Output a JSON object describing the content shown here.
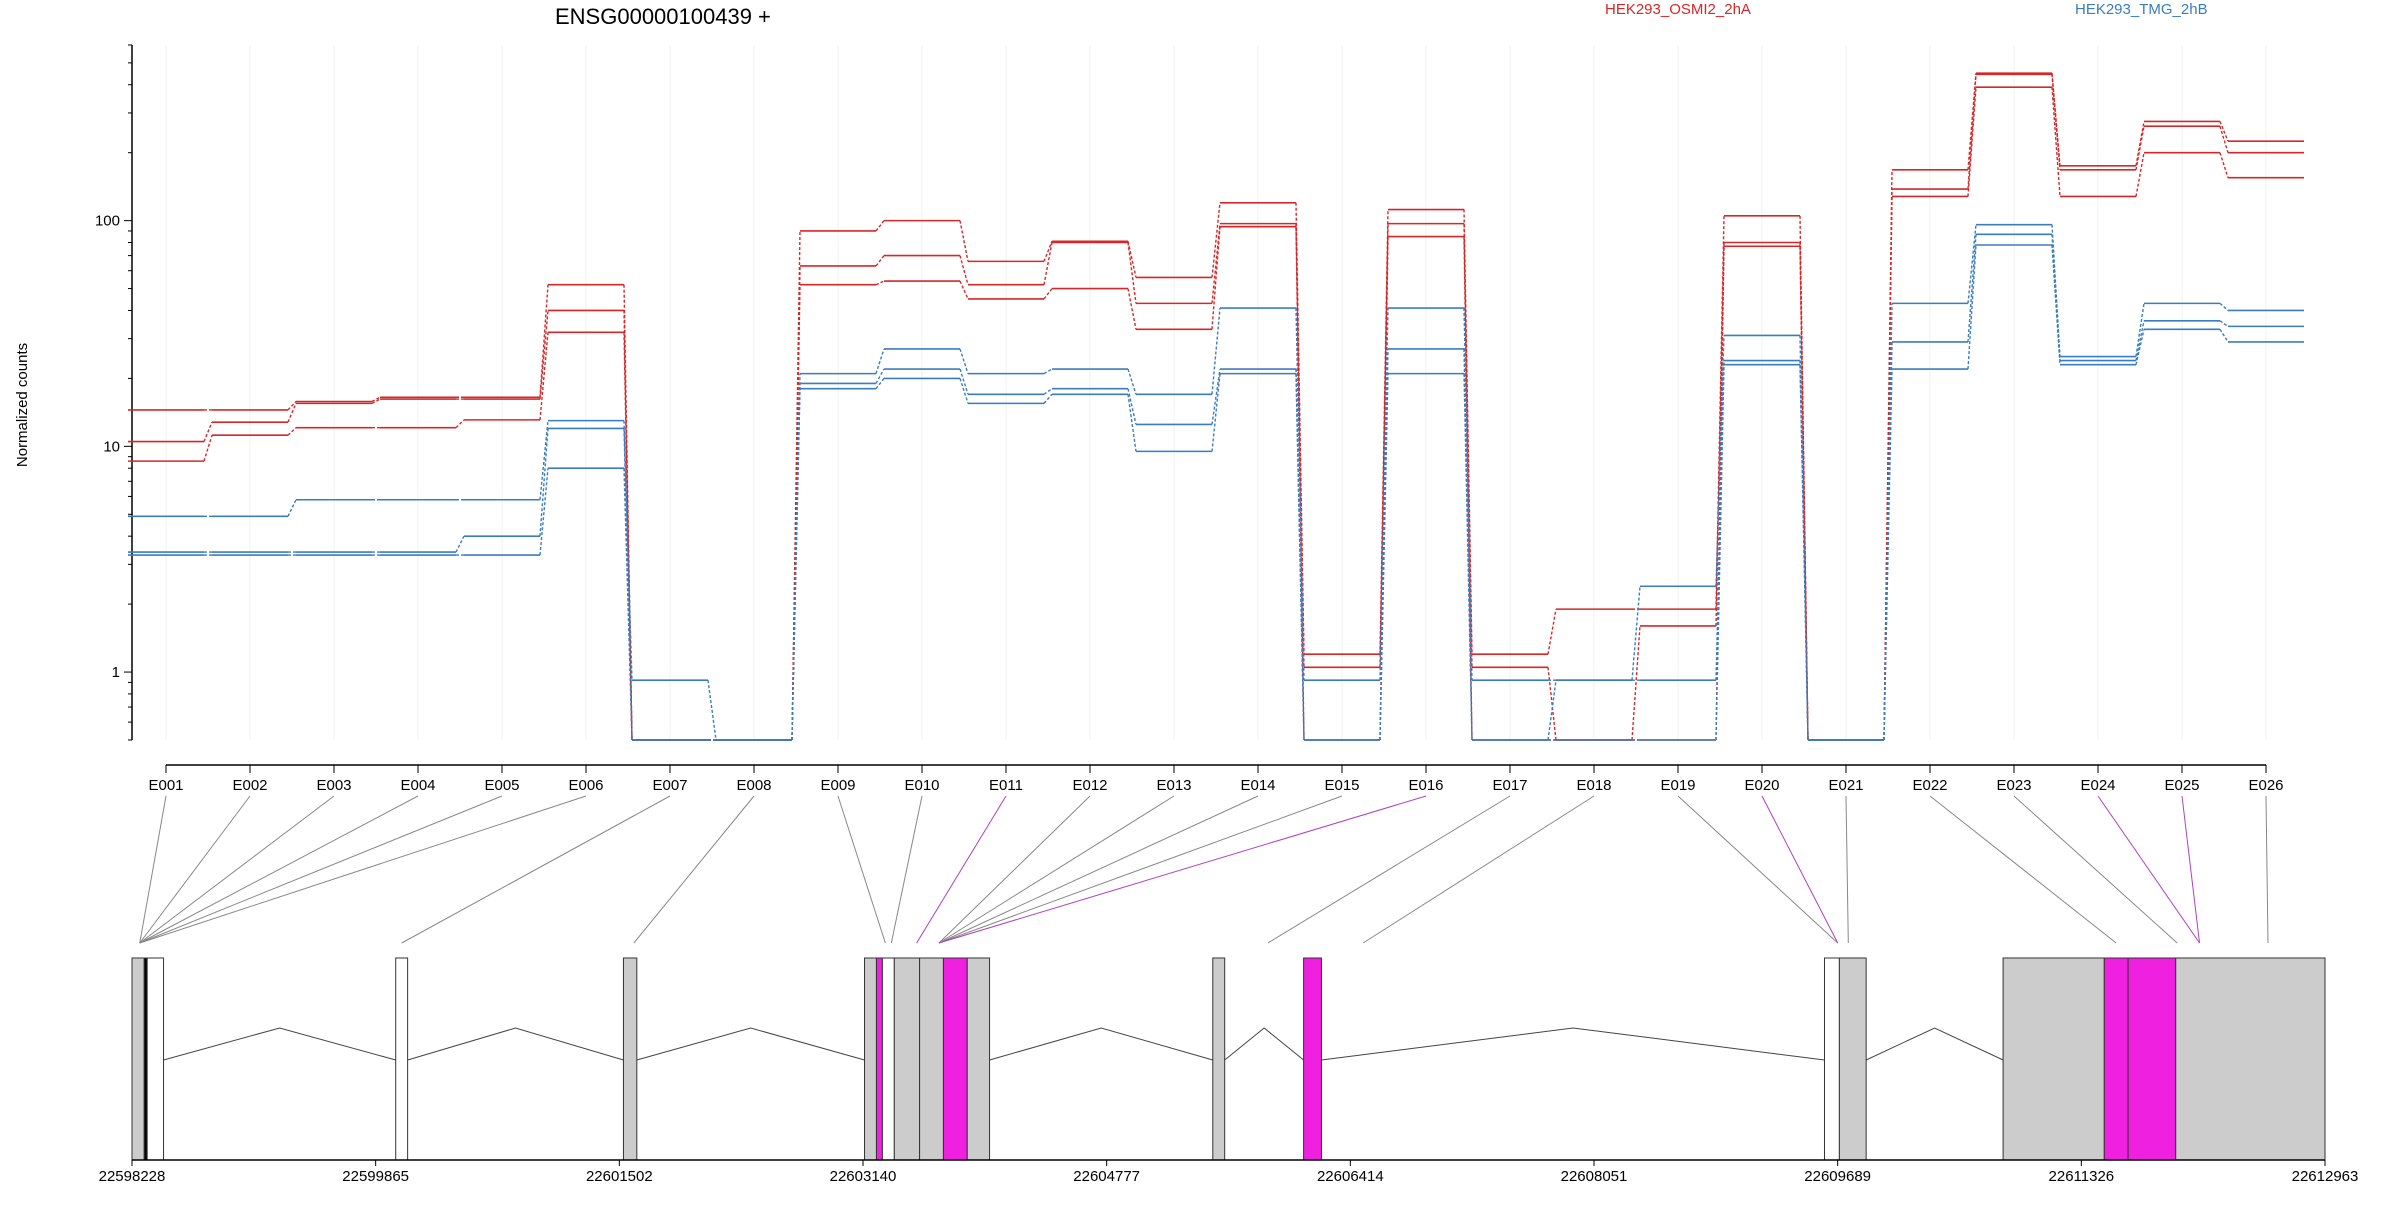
{
  "chart_data": {
    "type": "line",
    "title": "ENSG00000100439 +",
    "ylabel": "Normalized counts",
    "xlabel": "",
    "y_scale": "log",
    "y_ticks": [
      1,
      10,
      100
    ],
    "y_tick_labels": [
      "1",
      "10",
      "100"
    ],
    "ylim": [
      0.5,
      600
    ],
    "grid": "vertical, light",
    "legend_placement": "top",
    "exons": [
      "E001",
      "E002",
      "E003",
      "E004",
      "E005",
      "E006",
      "E007",
      "E008",
      "E009",
      "E010",
      "E011",
      "E012",
      "E013",
      "E014",
      "E015",
      "E016",
      "E017",
      "E018",
      "E019",
      "E020",
      "E021",
      "E022",
      "E023",
      "E024",
      "E025",
      "E026"
    ],
    "series": [
      {
        "name": "HEK293_OSMI2_2hA",
        "color": "#d62728",
        "values": [
          14.5,
          14.5,
          15.8,
          16.5,
          16.5,
          52,
          0.5,
          0.5,
          90,
          100,
          66,
          81,
          56,
          120,
          1.2,
          112,
          1.2,
          1.9,
          1.9,
          105,
          0.5,
          168,
          450,
          175,
          275,
          225
        ]
      },
      {
        "name": "HEK293_OSMI2_2hA",
        "color": "#d62728",
        "values": [
          10.5,
          12.8,
          15.5,
          16.2,
          16.2,
          40,
          0.5,
          0.5,
          63,
          70,
          52,
          80,
          43,
          97,
          1.05,
          97,
          1.05,
          0.5,
          1.6,
          80,
          0.5,
          138,
          445,
          168,
          262,
          200
        ]
      },
      {
        "name": "HEK293_OSMI2_2hA",
        "color": "#d62728",
        "values": [
          8.6,
          11.2,
          12.1,
          12.1,
          13.1,
          32,
          0.5,
          0.5,
          52,
          54,
          45,
          50,
          33,
          94,
          0.5,
          85,
          0.5,
          0.5,
          0.5,
          77,
          0.5,
          128,
          390,
          128,
          200,
          155
        ]
      },
      {
        "name": "HEK293_TMG_2hB",
        "color": "#3a7dbf",
        "values": [
          4.9,
          4.9,
          5.8,
          5.8,
          5.8,
          13,
          0.92,
          0.5,
          21,
          27,
          21,
          22,
          17,
          41,
          0.92,
          41,
          0.92,
          0.92,
          2.4,
          31,
          0.5,
          43,
          96,
          25,
          43,
          40
        ]
      },
      {
        "name": "HEK293_TMG_2hB",
        "color": "#3a7dbf",
        "values": [
          3.4,
          3.4,
          3.4,
          3.4,
          4.0,
          12,
          0.5,
          0.5,
          19,
          22,
          17,
          18,
          12.5,
          22,
          0.5,
          27,
          0.5,
          0.92,
          0.92,
          24,
          0.5,
          29,
          87,
          24,
          36,
          34
        ]
      },
      {
        "name": "HEK293_TMG_2hB",
        "color": "#3a7dbf",
        "values": [
          3.3,
          3.3,
          3.3,
          3.3,
          3.3,
          8,
          0.5,
          0.5,
          18,
          20,
          15.5,
          17,
          9.5,
          21,
          0.5,
          21,
          0.5,
          0.5,
          0.5,
          23,
          0.5,
          22,
          78,
          23,
          33,
          29
        ]
      }
    ],
    "legend": [
      {
        "label": "HEK293_OSMI2_2hA",
        "color": "#d62728"
      },
      {
        "label": "HEK293_TMG_2hB",
        "color": "#3a7dbf"
      }
    ],
    "genomic_axis": {
      "range": [
        22598228,
        22612963
      ],
      "tick_labels": [
        "22598228",
        "22599865",
        "22601502",
        "22603140",
        "22604777",
        "22606414",
        "22608051",
        "22609689",
        "22611326",
        "22612963"
      ]
    },
    "exon_positions": [
      22598280,
      22598280,
      22598280,
      22598280,
      22598280,
      22598280,
      22600040,
      22601600,
      22603290,
      22603330,
      22603500,
      22603650,
      22603650,
      22603650,
      22603650,
      22603650,
      22605860,
      22606500,
      22609689,
      22609689,
      22609760,
      22611560,
      22611970,
      22612120,
      22612120,
      22612580
    ],
    "exon_highlighted": [
      false,
      false,
      false,
      false,
      false,
      false,
      false,
      false,
      false,
      false,
      true,
      false,
      false,
      false,
      false,
      true,
      false,
      false,
      false,
      true,
      false,
      false,
      false,
      true,
      true,
      false
    ],
    "gene_blocks": [
      {
        "start": 22598228,
        "end": 22598310,
        "fill": "gray"
      },
      {
        "start": 22598310,
        "end": 22598330,
        "fill": "black"
      },
      {
        "start": 22598330,
        "end": 22598440,
        "fill": "white"
      },
      {
        "start": 22600000,
        "end": 22600080,
        "fill": "white"
      },
      {
        "start": 22601530,
        "end": 22601620,
        "fill": "gray"
      },
      {
        "start": 22603150,
        "end": 22603230,
        "fill": "gray"
      },
      {
        "start": 22603230,
        "end": 22603270,
        "fill": "magenta"
      },
      {
        "start": 22603270,
        "end": 22603350,
        "fill": "white"
      },
      {
        "start": 22603350,
        "end": 22603520,
        "fill": "gray"
      },
      {
        "start": 22603520,
        "end": 22603680,
        "fill": "gray"
      },
      {
        "start": 22603680,
        "end": 22603840,
        "fill": "magenta"
      },
      {
        "start": 22603840,
        "end": 22603990,
        "fill": "gray"
      },
      {
        "start": 22605490,
        "end": 22605570,
        "fill": "gray"
      },
      {
        "start": 22606100,
        "end": 22606220,
        "fill": "magenta"
      },
      {
        "start": 22609600,
        "end": 22609700,
        "fill": "white"
      },
      {
        "start": 22609700,
        "end": 22609880,
        "fill": "gray"
      },
      {
        "start": 22610800,
        "end": 22611480,
        "fill": "gray"
      },
      {
        "start": 22611480,
        "end": 22611640,
        "fill": "magenta"
      },
      {
        "start": 22611640,
        "end": 22611960,
        "fill": "magenta"
      },
      {
        "start": 22611960,
        "end": 22612963,
        "fill": "gray"
      }
    ],
    "introns": [
      [
        22598440,
        22600000
      ],
      [
        22600080,
        22601530
      ],
      [
        22601620,
        22603150
      ],
      [
        22603990,
        22605490
      ],
      [
        22605570,
        22606100
      ],
      [
        22606220,
        22609600
      ],
      [
        22609880,
        22610800
      ]
    ]
  }
}
